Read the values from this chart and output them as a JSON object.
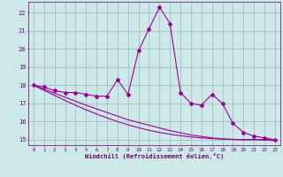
{
  "x": [
    0,
    1,
    2,
    3,
    4,
    5,
    6,
    7,
    8,
    9,
    10,
    11,
    12,
    13,
    14,
    15,
    16,
    17,
    18,
    19,
    20,
    21,
    22,
    23
  ],
  "y_main": [
    18.0,
    17.9,
    17.7,
    17.6,
    17.6,
    17.5,
    17.4,
    17.4,
    18.3,
    17.5,
    19.9,
    21.1,
    22.3,
    21.4,
    17.6,
    17.0,
    16.9,
    17.5,
    17.0,
    15.9,
    15.4,
    15.2,
    15.1,
    15.0
  ],
  "y_trend1": [
    18.0,
    17.78,
    17.56,
    17.34,
    17.12,
    16.9,
    16.7,
    16.5,
    16.3,
    16.1,
    15.95,
    15.8,
    15.65,
    15.5,
    15.38,
    15.26,
    15.18,
    15.1,
    15.05,
    15.02,
    15.0,
    15.0,
    15.0,
    15.0
  ],
  "y_trend2": [
    18.0,
    17.72,
    17.44,
    17.16,
    16.9,
    16.65,
    16.42,
    16.2,
    16.0,
    15.82,
    15.66,
    15.52,
    15.4,
    15.3,
    15.22,
    15.15,
    15.1,
    15.06,
    15.03,
    15.01,
    15.0,
    15.0,
    14.98,
    14.95
  ],
  "line_color": "#990099",
  "bg_color": "#cce8e8",
  "grid_color": "#99bbbb",
  "text_color": "#660066",
  "ylim": [
    14.7,
    22.6
  ],
  "yticks": [
    15,
    16,
    17,
    18,
    19,
    20,
    21,
    22
  ],
  "xticks": [
    0,
    1,
    2,
    3,
    4,
    5,
    6,
    7,
    8,
    9,
    10,
    11,
    12,
    13,
    14,
    15,
    16,
    17,
    18,
    19,
    20,
    21,
    22,
    23
  ],
  "xlabel": "Windchill (Refroidissement éolien,°C)",
  "marker": "D",
  "markersize": 2.0,
  "linewidth": 0.8
}
